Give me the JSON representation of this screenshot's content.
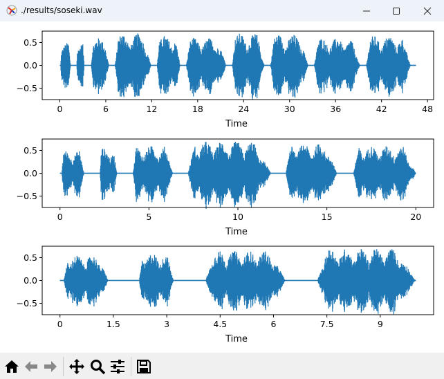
{
  "window": {
    "title": "./results/soseki.wav",
    "buttons": {
      "minimize": "minimize-icon",
      "maximize": "maximize-icon",
      "close": "close-icon"
    }
  },
  "toolbar": {
    "items": [
      "home-icon",
      "back-arrow-icon",
      "forward-arrow-icon",
      "pan-icon",
      "zoom-icon",
      "subplots-config-icon",
      "save-icon"
    ]
  },
  "colors": {
    "line": "#1f77b4"
  },
  "chart_data": [
    {
      "type": "line",
      "xlabel": "Time",
      "xlim": [
        -2.3,
        48.8
      ],
      "ylim": [
        -0.75,
        0.75
      ],
      "xticks": [
        "0",
        "6",
        "12",
        "18",
        "24",
        "30",
        "36",
        "42",
        "48"
      ],
      "xtick_values": [
        0,
        6,
        12,
        18,
        24,
        30,
        36,
        42,
        48
      ],
      "yticks": [
        "0.5",
        "0.0",
        "−0.5"
      ],
      "ytick_values": [
        0.5,
        0.0,
        -0.5
      ],
      "grid": false,
      "duration": 46.5,
      "voiced_segments": [
        [
          0.1,
          1.4,
          0.5
        ],
        [
          2.2,
          3.2,
          0.5
        ],
        [
          4.1,
          6.4,
          0.6
        ],
        [
          7.2,
          11.9,
          0.7
        ],
        [
          12.7,
          15.7,
          0.65
        ],
        [
          16.5,
          21.7,
          0.6
        ],
        [
          22.5,
          26.7,
          0.7
        ],
        [
          27.5,
          32.4,
          0.68
        ],
        [
          33.2,
          39.2,
          0.6
        ],
        [
          40.0,
          45.8,
          0.65
        ]
      ]
    },
    {
      "type": "line",
      "xlabel": "Time",
      "xlim": [
        -1,
        21
      ],
      "ylim": [
        -0.75,
        0.75
      ],
      "xticks": [
        "0",
        "5",
        "10",
        "15",
        "20"
      ],
      "xtick_values": [
        0,
        5,
        10,
        15,
        20
      ],
      "yticks": [
        "0.5",
        "0.0",
        "−0.5"
      ],
      "ytick_values": [
        0.5,
        0.0,
        -0.5
      ],
      "grid": false,
      "duration": 20,
      "voiced_segments": [
        [
          0.1,
          1.35,
          0.5
        ],
        [
          2.25,
          3.2,
          0.55
        ],
        [
          4.1,
          6.35,
          0.6
        ],
        [
          7.2,
          11.85,
          0.7
        ],
        [
          12.7,
          15.55,
          0.65
        ],
        [
          16.5,
          20.0,
          0.6
        ]
      ]
    },
    {
      "type": "line",
      "xlabel": "Time",
      "xlim": [
        -0.5,
        10.5
      ],
      "ylim": [
        -0.75,
        0.75
      ],
      "xticks": [
        "0",
        "1.5",
        "3",
        "4.5",
        "6",
        "7.5",
        "9"
      ],
      "xtick_values": [
        0,
        1.5,
        3,
        4.5,
        6,
        7.5,
        9
      ],
      "yticks": [
        "0.5",
        "0.0",
        "−0.5"
      ],
      "ytick_values": [
        0.5,
        0.0,
        -0.5
      ],
      "grid": false,
      "duration": 10,
      "voiced_segments": [
        [
          0.11,
          1.35,
          0.55
        ],
        [
          2.23,
          3.19,
          0.6
        ],
        [
          4.1,
          6.34,
          0.65
        ],
        [
          7.24,
          10.0,
          0.7
        ]
      ]
    }
  ]
}
